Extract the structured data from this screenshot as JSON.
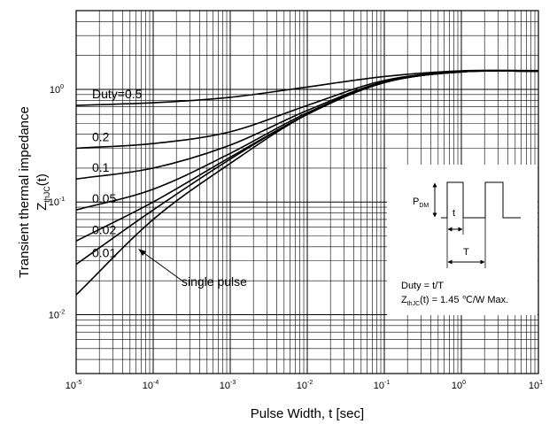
{
  "chart_data": {
    "type": "line",
    "title": "",
    "xlabel": "Pulse Width, t [sec]",
    "ylabel_main": "Transient thermal impedance",
    "ylabel_sym": "Z",
    "ylabel_sub": "thJC",
    "ylabel_tail": "(t)",
    "xscale": "log",
    "yscale": "log",
    "xlim": [
      1e-05,
      10
    ],
    "ylim": [
      0.003,
      5
    ],
    "grid": true,
    "x_ticks": [
      {
        "base": "10",
        "exp": "-5",
        "value": 1e-05
      },
      {
        "base": "10",
        "exp": "-4",
        "value": 0.0001
      },
      {
        "base": "10",
        "exp": "-3",
        "value": 0.001
      },
      {
        "base": "10",
        "exp": "-2",
        "value": 0.01
      },
      {
        "base": "10",
        "exp": "-1",
        "value": 0.1
      },
      {
        "base": "10",
        "exp": "0",
        "value": 1
      },
      {
        "base": "10",
        "exp": "1",
        "value": 10
      }
    ],
    "y_ticks": [
      {
        "base": "10",
        "exp": "-2",
        "value": 0.01
      },
      {
        "base": "10",
        "exp": "-1",
        "value": 0.1
      },
      {
        "base": "10",
        "exp": "0",
        "value": 1
      }
    ],
    "x": [
      1e-05,
      0.0001,
      0.001,
      0.01,
      0.1,
      1,
      10
    ],
    "series": [
      {
        "name": "Duty=0.5",
        "values": [
          0.72,
          0.76,
          0.85,
          1.05,
          1.3,
          1.46,
          1.47
        ]
      },
      {
        "name": "0.2",
        "values": [
          0.3,
          0.33,
          0.42,
          0.72,
          1.2,
          1.44,
          1.46
        ]
      },
      {
        "name": "0.1",
        "values": [
          0.16,
          0.2,
          0.32,
          0.65,
          1.17,
          1.43,
          1.46
        ]
      },
      {
        "name": "0.05",
        "values": [
          0.085,
          0.13,
          0.27,
          0.62,
          1.15,
          1.43,
          1.45
        ]
      },
      {
        "name": "0.02",
        "values": [
          0.045,
          0.1,
          0.25,
          0.6,
          1.15,
          1.43,
          1.45
        ]
      },
      {
        "name": "0.01",
        "values": [
          0.028,
          0.085,
          0.24,
          0.6,
          1.15,
          1.43,
          1.45
        ]
      },
      {
        "name": "single pulse",
        "values": [
          0.015,
          0.07,
          0.22,
          0.6,
          1.15,
          1.43,
          1.45
        ]
      }
    ],
    "annotations": {
      "single_pulse": "single pulse",
      "inset_pdm_main": "P",
      "inset_pdm_sub": "DM",
      "inset_t": "t",
      "inset_T": "T",
      "inset_duty": "Duty = t/T",
      "inset_z_main": "Z",
      "inset_z_sub": "thJC",
      "inset_z_tail": "(t) = 1.45 ℃/W Max."
    }
  }
}
